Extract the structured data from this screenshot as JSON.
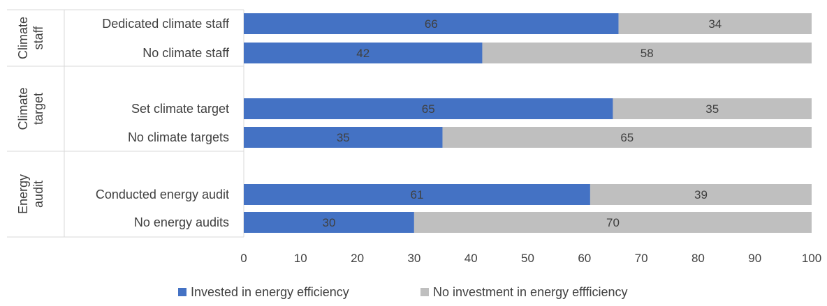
{
  "chart_data": {
    "type": "bar",
    "orientation": "horizontal",
    "stacked": true,
    "groups": [
      {
        "label_lines": [
          "Climate",
          "staff"
        ],
        "categories": [
          "Dedicated climate staff",
          "No climate staff"
        ]
      },
      {
        "label_lines": [
          "Climate",
          "target"
        ],
        "categories": [
          "Set climate target",
          "No climate targets"
        ]
      },
      {
        "label_lines": [
          "Energy",
          "audit"
        ],
        "categories": [
          "Conducted energy audit",
          "No energy audits"
        ]
      }
    ],
    "categories": [
      "Dedicated climate staff",
      "No climate staff",
      "Set climate target",
      "No climate targets",
      "Conducted energy audit",
      "No energy audits"
    ],
    "series": [
      {
        "name": "Invested in energy efficiency",
        "color": "#4472C4",
        "values": [
          66,
          42,
          65,
          35,
          61,
          30
        ]
      },
      {
        "name": "No investment in energy effficiency",
        "color": "#BFBFBF",
        "values": [
          34,
          58,
          35,
          65,
          39,
          70
        ]
      }
    ],
    "xlim": [
      0,
      100
    ],
    "xticks": [
      "0",
      "10",
      "20",
      "30",
      "40",
      "50",
      "60",
      "70",
      "80",
      "90",
      "100"
    ],
    "grid": false,
    "legend_position": "bottom"
  }
}
